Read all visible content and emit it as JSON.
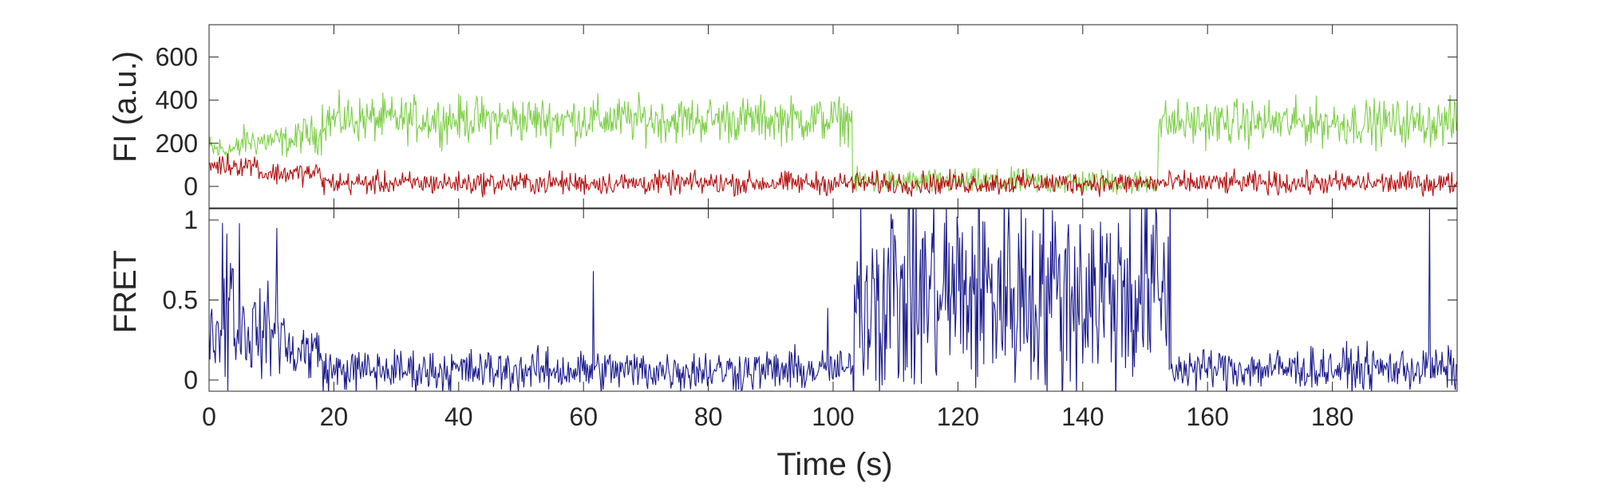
{
  "chart_data": [
    {
      "type": "line",
      "panel": "intensity",
      "ylabel": "FI (a.u.)",
      "xlim": [
        0,
        200
      ],
      "ylim": [
        -100,
        750
      ],
      "yticks": [
        0,
        200,
        400,
        600
      ],
      "ytick_labels": [
        "0",
        "200",
        "400",
        "600"
      ],
      "grid": false,
      "series": [
        {
          "color": "#7fcf4a",
          "segments": [
            {
              "t": [
                0,
                5
              ],
              "mean": 170,
              "noise": 55
            },
            {
              "t": [
                5,
                14
              ],
              "mean": 210,
              "noise": 55
            },
            {
              "t": [
                14,
                18
              ],
              "mean": 240,
              "noise": 65
            },
            {
              "t": [
                18,
                103
              ],
              "mean": 310,
              "noise": 80
            },
            {
              "t": [
                103,
                152
              ],
              "mean": 20,
              "noise": 45
            },
            {
              "t": [
                152,
                200
              ],
              "mean": 295,
              "noise": 80
            }
          ]
        },
        {
          "color": "#b40f0f",
          "segments": [
            {
              "t": [
                0,
                8
              ],
              "mean": 100,
              "noise": 40
            },
            {
              "t": [
                8,
                18
              ],
              "mean": 60,
              "noise": 40
            },
            {
              "t": [
                18,
                200
              ],
              "mean": 15,
              "noise": 40
            }
          ]
        }
      ]
    },
    {
      "type": "line",
      "panel": "fret",
      "xlabel": "Time (s)",
      "ylabel": "FRET",
      "xlim": [
        0,
        200
      ],
      "ylim": [
        -0.07,
        1.07
      ],
      "xticks": [
        0,
        20,
        40,
        60,
        80,
        100,
        120,
        140,
        160,
        180
      ],
      "xtick_labels": [
        "0",
        "20",
        "40",
        "60",
        "80",
        "100",
        "120",
        "140",
        "160",
        "180"
      ],
      "yticks": [
        0,
        0.5,
        1
      ],
      "ytick_labels": [
        "0",
        "0.5",
        "1"
      ],
      "grid": false,
      "series": [
        {
          "color": "#1a1a8c",
          "segments": [
            {
              "t": [
                0,
                2
              ],
              "mean": 0.3,
              "noise": 0.15
            },
            {
              "t": [
                2,
                4
              ],
              "mean": 0.55,
              "noise": 0.45
            },
            {
              "t": [
                4,
                12
              ],
              "mean": 0.3,
              "noise": 0.2
            },
            {
              "t": [
                12,
                18
              ],
              "mean": 0.18,
              "noise": 0.15
            },
            {
              "t": [
                18,
                103
              ],
              "mean": 0.06,
              "noise": 0.1
            },
            {
              "t": [
                103,
                154
              ],
              "mean": 0.55,
              "noise": 0.5
            },
            {
              "t": [
                154,
                200
              ],
              "mean": 0.07,
              "noise": 0.1
            }
          ],
          "spikes": [
            {
              "t": 4.8,
              "value": 0.98
            },
            {
              "t": 10.8,
              "value": 0.95
            },
            {
              "t": 61.5,
              "value": 0.68
            },
            {
              "t": 99.2,
              "value": 0.45
            },
            {
              "t": 195.5,
              "value": 1.1
            }
          ]
        }
      ]
    }
  ]
}
